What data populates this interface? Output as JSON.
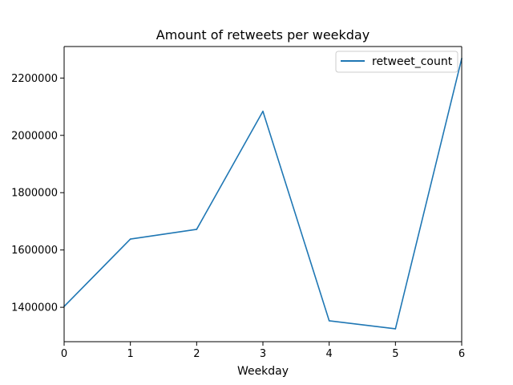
{
  "chart_data": {
    "type": "line",
    "title": "Amount of retweets per weekday",
    "xlabel": "Weekday",
    "ylabel": "",
    "x": [
      0,
      1,
      2,
      3,
      4,
      5,
      6
    ],
    "xticks": [
      "0",
      "1",
      "2",
      "3",
      "4",
      "5",
      "6"
    ],
    "yticks": [
      1400000,
      1600000,
      1800000,
      2000000,
      2200000
    ],
    "ytick_labels": [
      "1400000",
      "1600000",
      "1800000",
      "2000000",
      "2200000"
    ],
    "xlim": [
      0,
      6
    ],
    "ylim": [
      1280000,
      2310000
    ],
    "grid": false,
    "legend_position": "upper right",
    "series": [
      {
        "name": "retweet_count",
        "color": "#1f77b4",
        "values": [
          1403000,
          1638000,
          1672000,
          2084000,
          1353000,
          1325000,
          2268000
        ]
      }
    ]
  }
}
